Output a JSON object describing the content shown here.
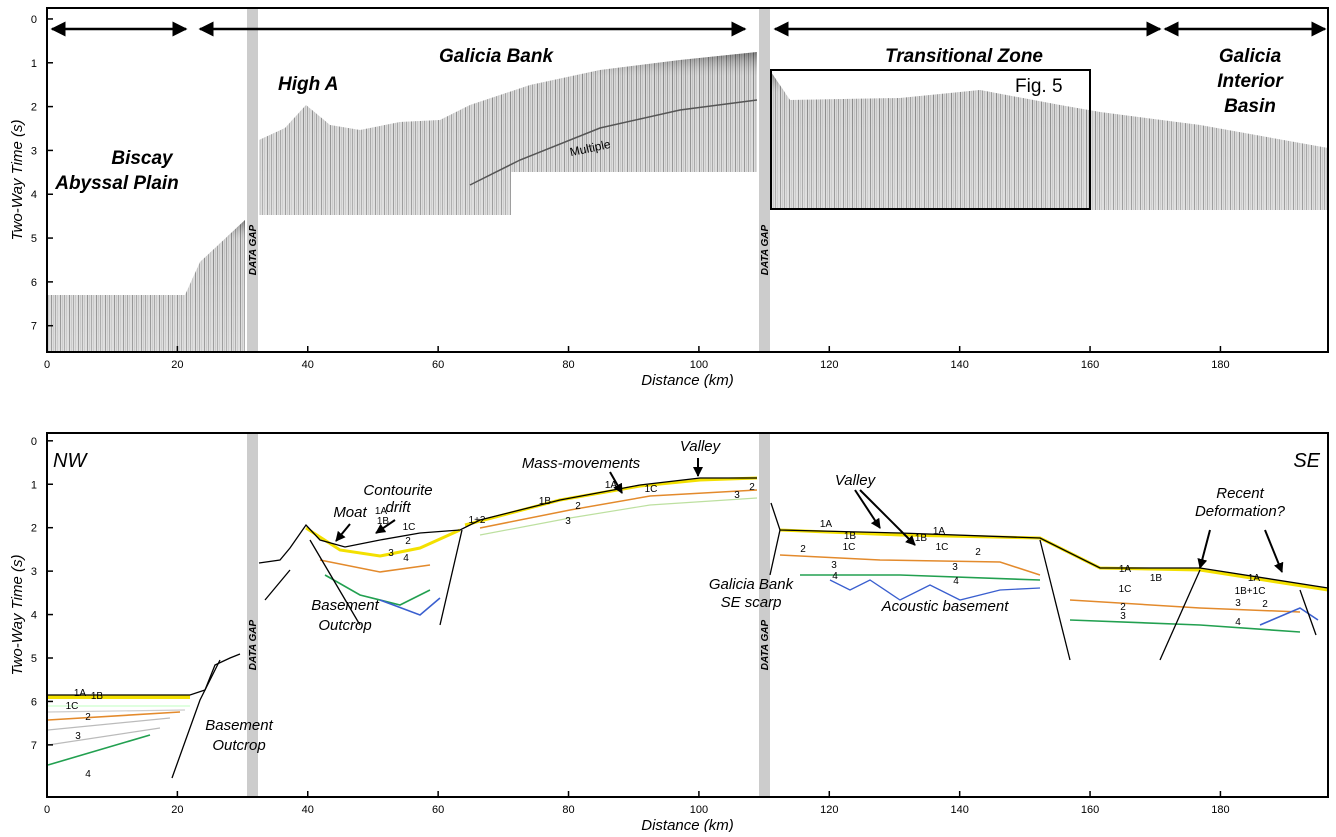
{
  "panels": [
    {
      "xlim": [
        0,
        196.5
      ],
      "ylim": [
        -0.25,
        7.6
      ],
      "xticks": [
        0,
        20,
        40,
        60,
        80,
        100,
        120,
        140,
        160,
        180
      ],
      "yticks": [
        0,
        1,
        2,
        3,
        4,
        5,
        6,
        7
      ],
      "x_label": "Distance (km)",
      "y_label": "Two-Way Time (s)",
      "annotations": [
        "Biscay",
        "Abyssal Plain",
        "High A",
        "Galicia Bank",
        "Multiple",
        "Transitional Zone",
        "Fig. 5",
        "Galicia",
        "Interior",
        "Basin"
      ],
      "data_gaps": [
        "DATA GAP",
        "DATA GAP"
      ]
    },
    {
      "xlim": [
        0,
        196.5
      ],
      "ylim": [
        -0.18,
        8.2
      ],
      "xticks": [
        0,
        20,
        40,
        60,
        80,
        100,
        120,
        140,
        160,
        180
      ],
      "yticks": [
        0,
        1,
        2,
        3,
        4,
        5,
        6,
        7
      ],
      "x_label": "Distance (km)",
      "y_label": "Two-Way Time (s)",
      "annotations": [
        "NW",
        "SE",
        "Moat",
        "Contourite",
        "drift",
        "Mass-movements",
        "Valley",
        "Valley",
        "Basement",
        "Outcrop",
        "Basement",
        "Outcrop",
        "Galicia Bank",
        "SE scarp",
        "Acoustic basement",
        "Recent",
        "Deformation?"
      ],
      "data_gaps": [
        "DATA GAP",
        "DATA GAP"
      ],
      "units": [
        "1A",
        "1B",
        "1C",
        "2",
        "3",
        "4",
        "1A",
        "1B",
        "1C",
        "2",
        "3",
        "4",
        "1+2",
        "1B",
        "2",
        "3",
        "1A",
        "1C",
        "3",
        "2",
        "1A",
        "1B",
        "1C",
        "1B",
        "1A",
        "1C",
        "2",
        "3",
        "2",
        "3",
        "4",
        "4",
        "1A",
        "1B",
        "1C",
        "2",
        "3",
        "1A",
        "1B+1C",
        "3",
        "2",
        "4"
      ]
    }
  ]
}
